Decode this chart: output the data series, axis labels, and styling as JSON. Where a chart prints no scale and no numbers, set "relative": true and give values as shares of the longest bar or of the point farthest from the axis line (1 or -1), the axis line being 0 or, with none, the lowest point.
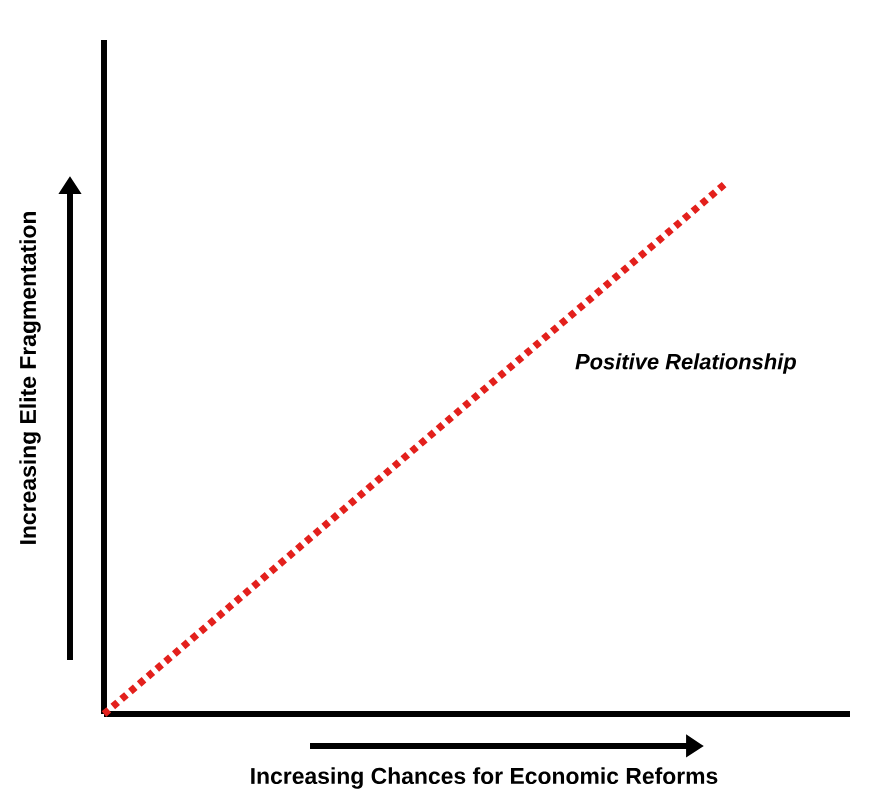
{
  "chart_data": {
    "type": "line",
    "relative": true,
    "xlabel": "Increasing Chances for Economic Reforms",
    "ylabel": "Increasing Elite Fragmentation",
    "categories": [
      null,
      null,
      null,
      null,
      null,
      null,
      null
    ],
    "series": [
      {
        "color": "#e3201c",
        "values": [
          0,
          0.2,
          0.4,
          0.6,
          0.8,
          1,
          null
        ]
      }
    ],
    "line_style": "dotted",
    "marker": "none",
    "annotations": [
      "Positive Relationship"
    ]
  }
}
